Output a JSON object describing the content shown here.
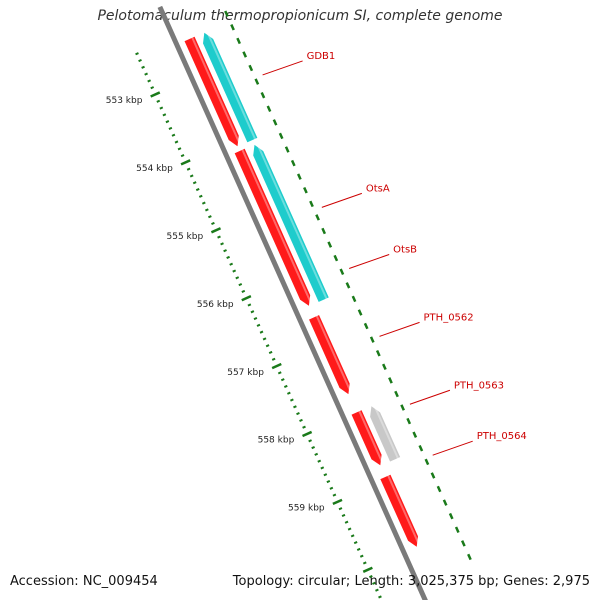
{
  "title": "Pelotomaculum thermopropionicum SI, complete genome",
  "footer": {
    "accession_label": "Accession:",
    "accession": "NC_009454",
    "topology_label": "Topology:",
    "topology": "circular",
    "length_label": "Length:",
    "length": "3,025,375 bp",
    "genes_label": "Genes:",
    "genes": "2,975"
  },
  "colors": {
    "forward_cds": "#ff1a1a",
    "reverse_cds": "#1ecccc",
    "other_feature": "#c8c8c8",
    "backbone": "#7a7a7a",
    "gene_label": "#cc0000",
    "tick_major": "#1a7a1a",
    "tick_minor": "#1a7a1a"
  },
  "ruler": {
    "unit": "kbp",
    "ticks_kbp": [
      553,
      554,
      555,
      556,
      557,
      558,
      559
    ],
    "tick_labels": [
      "553 kbp",
      "554 kbp",
      "555 kbp",
      "556 kbp",
      "557 kbp",
      "558 kbp",
      "559 kbp"
    ]
  },
  "features": [
    {
      "name": "GDB1",
      "track": "forward",
      "strand": "+",
      "start_kbp": 552.5,
      "end_kbp": 554.1
    },
    {
      "name": "GDB1",
      "track": "reverse",
      "strand": "-",
      "start_kbp": 552.5,
      "end_kbp": 554.1
    },
    {
      "name": "OtsA",
      "track": "forward",
      "strand": "+",
      "start_kbp": 554.15,
      "end_kbp": 556.45
    },
    {
      "name": "OtsB",
      "track": "reverse",
      "strand": "-",
      "start_kbp": 554.15,
      "end_kbp": 556.45
    },
    {
      "name": "PTH_0562",
      "track": "forward",
      "strand": "+",
      "start_kbp": 556.6,
      "end_kbp": 557.75
    },
    {
      "name": "PTH_0563",
      "track": "forward",
      "strand": "+",
      "start_kbp": 558.0,
      "end_kbp": 558.8
    },
    {
      "name": "PTH_0563",
      "track": "other",
      "strand": "-",
      "start_kbp": 558.0,
      "end_kbp": 558.8
    },
    {
      "name": "PTH_0564",
      "track": "forward",
      "strand": "+",
      "start_kbp": 558.95,
      "end_kbp": 560.0
    }
  ],
  "gene_labels": [
    {
      "name": "GDB1",
      "kbp": 553.35
    },
    {
      "name": "OtsA",
      "kbp": 555.3
    },
    {
      "name": "OtsB",
      "kbp": 556.2
    },
    {
      "name": "PTH_0562",
      "kbp": 557.2
    },
    {
      "name": "PTH_0563",
      "kbp": 558.2
    },
    {
      "name": "PTH_0564",
      "kbp": 558.95
    }
  ]
}
